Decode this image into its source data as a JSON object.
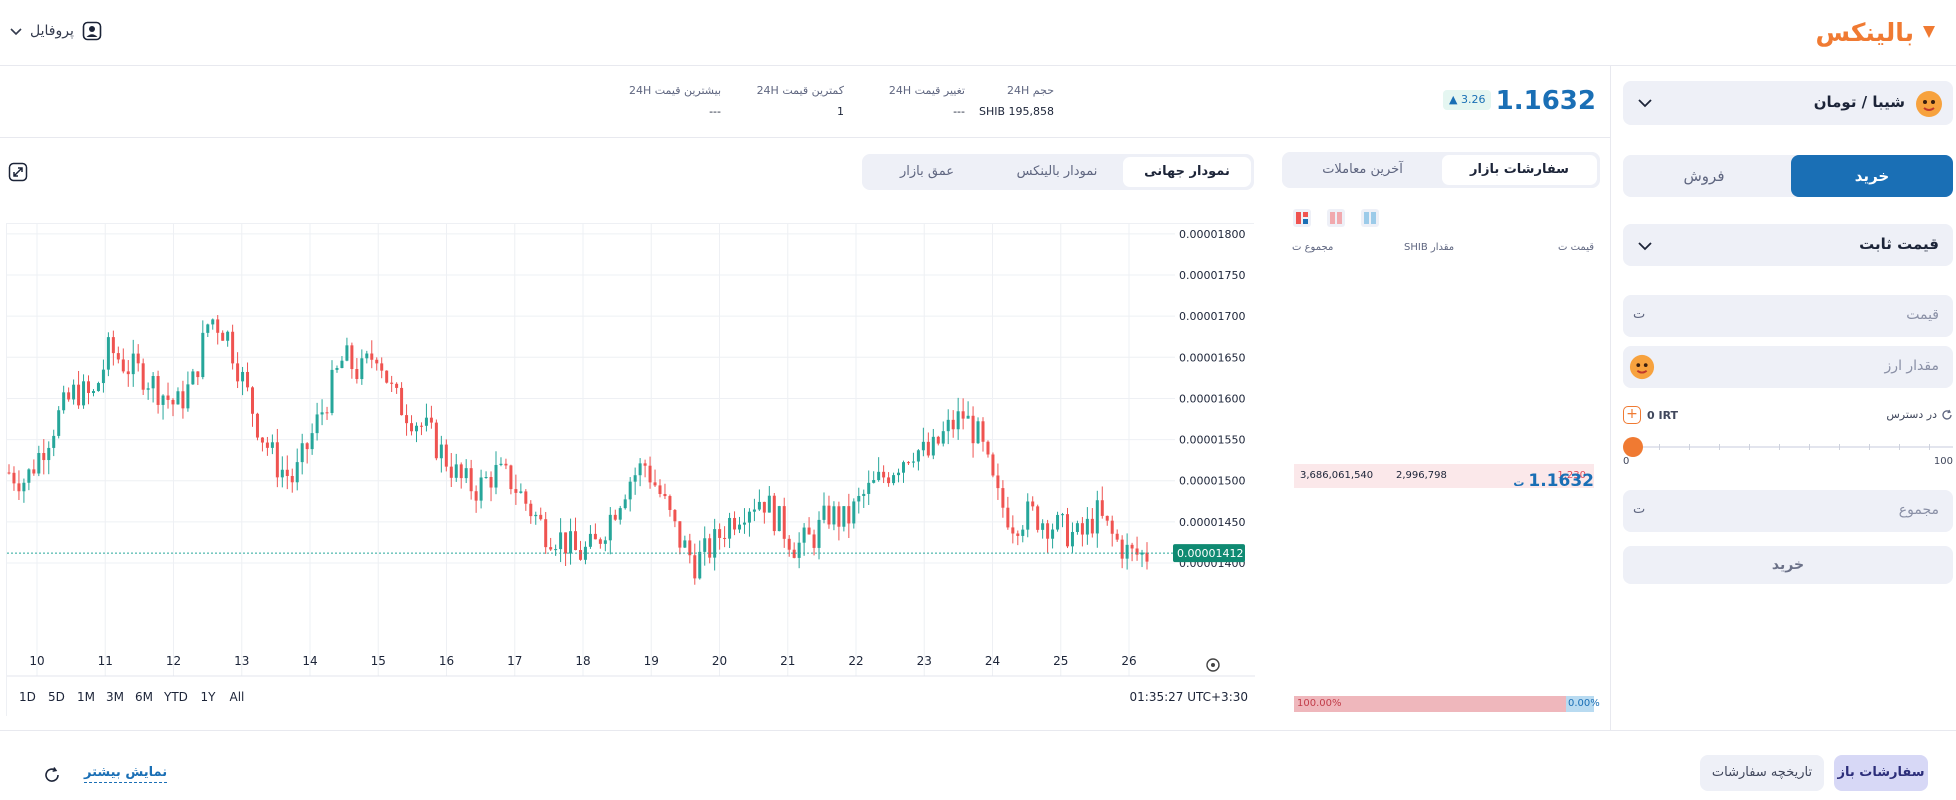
{
  "app": {
    "logo_text": "بالینکس",
    "profile_label": "پروفایل"
  },
  "colors": {
    "accent": "#1a6fb5",
    "brand": "#f07a32",
    "up": "#26a69a",
    "down": "#ef5350"
  },
  "trade_panel": {
    "pair": "شیبا / تومان",
    "tabs": {
      "buy": "خرید",
      "sell": "فروش"
    },
    "order_type": "قیمت ثابت",
    "price_placeholder": "قیمت",
    "amount_placeholder": "مقدار ارز",
    "available_label": "در دسترس",
    "available_value": "0 IRT",
    "slider_min": "0",
    "slider_max": "100",
    "slider_percent": 0,
    "total_placeholder": "مجموع",
    "submit_label": "خرید"
  },
  "header": {
    "last_price": "1.1632",
    "change": "3.26",
    "stats": [
      {
        "key": "volume",
        "title": "حجم 24H",
        "value": "SHIB 195,858"
      },
      {
        "key": "change",
        "title": "تغییر قیمت 24H",
        "value": "---"
      },
      {
        "key": "low",
        "title": "کمترین قیمت 24H",
        "value": "1"
      },
      {
        "key": "high",
        "title": "بیشترین قیمت 24H",
        "value": "---"
      }
    ]
  },
  "order_book": {
    "tabs": {
      "orders": "سفارشات بازار",
      "trades": "آخرین معاملات"
    },
    "headers": {
      "price": "قیمت",
      "amount": "مقدار SHIB",
      "total": "مجموع"
    },
    "asks": [
      {
        "price": "1,230",
        "amount": "2,996,798",
        "total": "3,686,061,540"
      }
    ],
    "last_price": "1.1632",
    "sell_ratio": "100.00%",
    "buy_ratio": "0.00%"
  },
  "chart_tabs": {
    "global": "نمودار جهانی",
    "balinex": "نمودار بالینکس",
    "depth": "عمق بازار"
  },
  "chart_data": {
    "type": "candlestick",
    "x_labels": [
      "10",
      "11",
      "12",
      "13",
      "14",
      "15",
      "16",
      "17",
      "18",
      "19",
      "20",
      "21",
      "22",
      "23",
      "24",
      "25",
      "26"
    ],
    "y_ticks": [
      "0.00001800",
      "0.00001750",
      "0.00001700",
      "0.00001650",
      "0.00001600",
      "0.00001550",
      "0.00001500",
      "0.00001450",
      "0.00001400"
    ],
    "ylim": [
      1.383e-05,
      1.812e-05
    ],
    "current_price": "0.00001412",
    "grid": true,
    "ranges": [
      "1D",
      "5D",
      "1M",
      "3M",
      "6M",
      "YTD",
      "1Y",
      "All"
    ],
    "clock": "01:35:27 UTC+3:30",
    "series_close": [
      1.51e-05,
      1.5e-05,
      1.54e-05,
      1.58e-05,
      1.61e-05,
      1.6e-05,
      1.66e-05,
      1.64e-05,
      1.63e-05,
      1.61e-05,
      1.59e-05,
      1.62e-05,
      1.7e-05,
      1.68e-05,
      1.62e-05,
      1.56e-05,
      1.52e-05,
      1.5e-05,
      1.55e-05,
      1.6e-05,
      1.65e-05,
      1.63e-05,
      1.66e-05,
      1.6e-05,
      1.58e-05,
      1.56e-05,
      1.53e-05,
      1.5e-05,
      1.49e-05,
      1.51e-05,
      1.5e-05,
      1.47e-05,
      1.44e-05,
      1.43e-05,
      1.41e-05,
      1.42e-05,
      1.46e-05,
      1.5e-05,
      1.52e-05,
      1.48e-05,
      1.43e-05,
      1.4e-05,
      1.42e-05,
      1.45e-05,
      1.47e-05,
      1.48e-05,
      1.45e-05,
      1.42e-05,
      1.43e-05,
      1.46e-05,
      1.45e-05,
      1.48e-05,
      1.5e-05,
      1.52e-05,
      1.54e-05,
      1.53e-05,
      1.56e-05,
      1.58e-05,
      1.55e-05,
      1.48e-05,
      1.45e-05,
      1.46e-05,
      1.45e-05,
      1.44e-05,
      1.43e-05,
      1.46e-05,
      1.43e-05,
      1.41e-05,
      1.41e-05
    ]
  }
}
